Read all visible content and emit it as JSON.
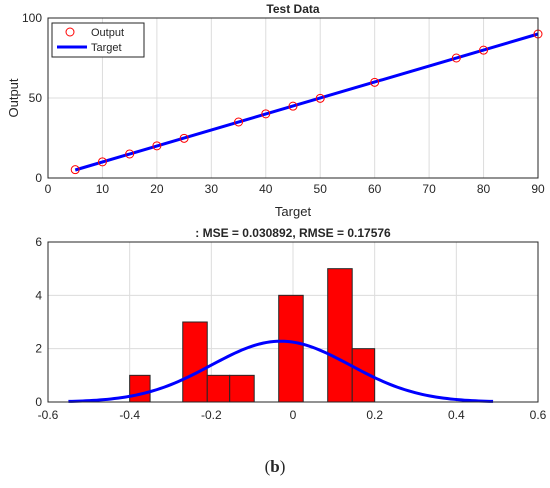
{
  "figure": {
    "caption_open": "(",
    "caption_letter": "b",
    "caption_close": ")"
  },
  "chart_data": [
    {
      "type": "scatter",
      "title": "Test Data",
      "xlabel": "Target",
      "ylabel": "Output",
      "xlim": [
        0,
        90
      ],
      "ylim": [
        0,
        100
      ],
      "xticks": [
        0,
        10,
        20,
        30,
        40,
        50,
        60,
        70,
        80,
        90
      ],
      "yticks": [
        0,
        50,
        100
      ],
      "grid": true,
      "legend": "top-left",
      "series": [
        {
          "name": "Output",
          "kind": "markers",
          "marker": "circle",
          "color": "#ff0000",
          "x": [
            5,
            10,
            15,
            20,
            25,
            35,
            40,
            45,
            50,
            60,
            75,
            80,
            90
          ],
          "y": [
            5.2,
            10.1,
            15,
            20.1,
            24.8,
            35,
            40.1,
            44.9,
            49.8,
            59.8,
            75,
            79.9,
            90
          ]
        },
        {
          "name": "Target",
          "kind": "line",
          "color": "#0000ff",
          "x": [
            5,
            90
          ],
          "y": [
            5,
            90
          ]
        }
      ]
    },
    {
      "type": "bar",
      "title": ": MSE = 0.030892, RMSE = 0.17576",
      "xlabel": "",
      "ylabel": "",
      "xlim": [
        -0.6,
        0.6
      ],
      "ylim": [
        0,
        6
      ],
      "xticks": [
        "-0.6",
        "-0.4",
        "-0.2",
        "0",
        "0.2",
        "0.4",
        "0.6"
      ],
      "yticks": [
        0,
        2,
        4,
        6
      ],
      "grid": true,
      "bar_color": "#ff0000",
      "bins": [
        {
          "x0": -0.4,
          "x1": -0.35,
          "count": 1
        },
        {
          "x0": -0.27,
          "x1": -0.21,
          "count": 3
        },
        {
          "x0": -0.21,
          "x1": -0.155,
          "count": 1
        },
        {
          "x0": -0.155,
          "x1": -0.095,
          "count": 1
        },
        {
          "x0": -0.035,
          "x1": 0.025,
          "count": 4
        },
        {
          "x0": 0.085,
          "x1": 0.145,
          "count": 5
        },
        {
          "x0": 0.145,
          "x1": 0.2,
          "count": 2
        }
      ],
      "fit_curve": {
        "color": "#0000ff",
        "mean": -0.03,
        "sd": 0.17,
        "peak": 2.28,
        "x_range": [
          -0.55,
          0.49
        ]
      }
    }
  ]
}
